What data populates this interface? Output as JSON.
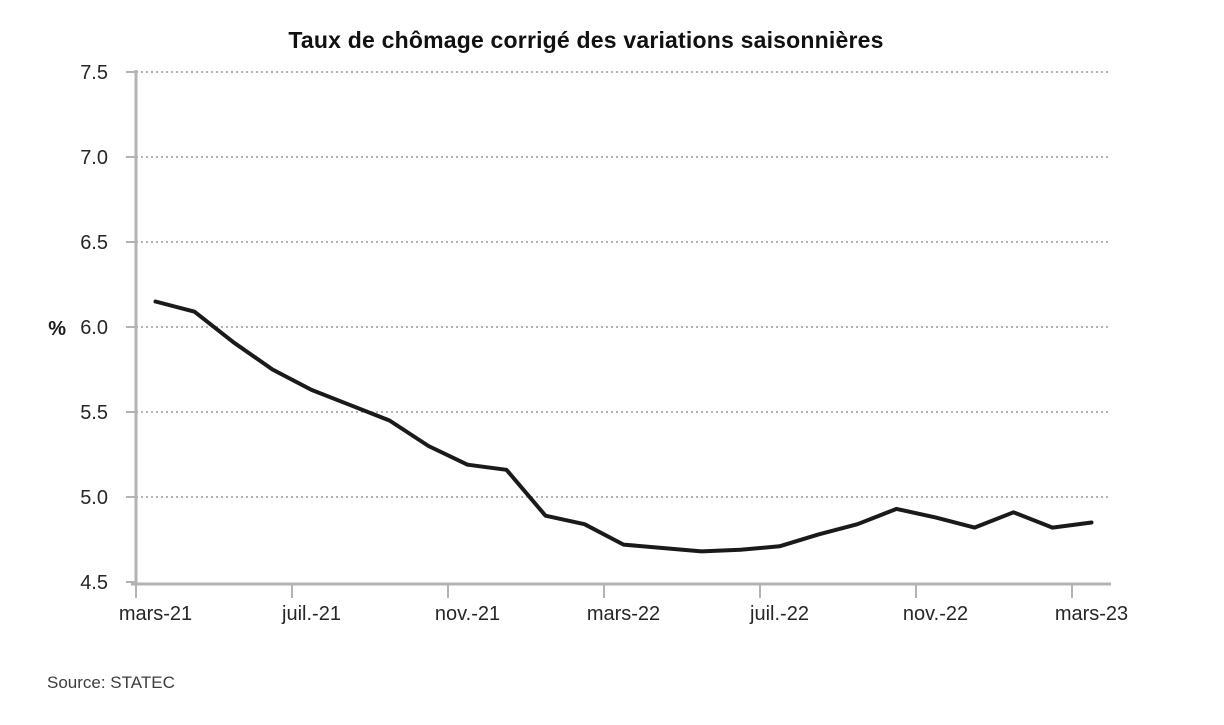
{
  "chart_data": {
    "type": "line",
    "title": "Taux de chômage corrigé des variations saisonnières",
    "ylabel": "%",
    "xlabel": "",
    "ylim": [
      4.5,
      7.5
    ],
    "yticks": [
      7.5,
      7.0,
      6.5,
      6.0,
      5.5,
      5.0,
      4.5
    ],
    "ytick_labels": [
      "7.5",
      "7.0",
      "6.5",
      "6.0",
      "5.5",
      "5.0",
      "4.5"
    ],
    "xtick_labels": [
      "mars-21",
      "juil.-21",
      "nov.-21",
      "mars-22",
      "juil.-22",
      "nov.-22",
      "mars-23"
    ],
    "xtick_month_interval": 4,
    "grid": "horizontal-dotted",
    "legend": "none",
    "series": [
      {
        "name": "Taux de chômage corrigé des variations saisonnières",
        "x": [
          "mars-21",
          "avr.-21",
          "mai-21",
          "juin-21",
          "juil.-21",
          "août-21",
          "sept.-21",
          "oct.-21",
          "nov.-21",
          "déc.-21",
          "janv.-22",
          "févr.-22",
          "mars-22",
          "avr.-22",
          "mai-22",
          "juin-22",
          "juil.-22",
          "août-22",
          "sept.-22",
          "oct.-22",
          "nov.-22",
          "déc.-22",
          "janv.-23",
          "févr.-23",
          "mars-23"
        ],
        "values": [
          6.15,
          6.09,
          5.91,
          5.75,
          5.63,
          5.54,
          5.45,
          5.3,
          5.19,
          5.16,
          4.89,
          4.84,
          4.72,
          4.7,
          4.68,
          4.69,
          4.71,
          4.78,
          4.84,
          4.93,
          4.88,
          4.82,
          4.91,
          4.82,
          4.85
        ]
      }
    ],
    "colors": {
      "line": "#1a1a1a",
      "grid": "#999999",
      "axis": "#b3b3b3",
      "tick_text": "#262626",
      "title_text": "#111111",
      "background": "#ffffff"
    }
  },
  "footer": {
    "source": "Source: STATEC"
  }
}
